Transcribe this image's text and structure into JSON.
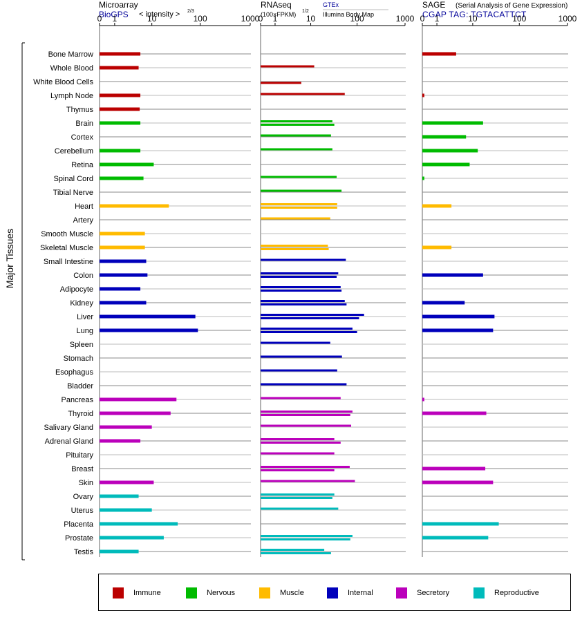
{
  "panels": [
    {
      "title": "Microarray",
      "subtitle": "BioGPS",
      "scale_note": "< intensity >",
      "scale_exp": "2/3",
      "extra1": "",
      "extra2": "",
      "ticks": [
        "0",
        "1",
        "10",
        "100",
        "1000"
      ]
    },
    {
      "title": "RNAseq",
      "subtitle": "(100×FPKM)",
      "scale_note": "",
      "scale_exp": "1/2",
      "extra1": "GTEx",
      "extra2": "Illumina Body Map",
      "ticks": [
        "0",
        "1",
        "10",
        "100",
        "1000"
      ]
    },
    {
      "title": "SAGE",
      "subtitle": "CGAP TAG: TGTACATTCT",
      "scale_note": "(Serial Analysis of Gene Expression)",
      "scale_exp": "",
      "extra1": "",
      "extra2": "",
      "ticks": [
        "0",
        "1",
        "10",
        "100",
        "1000"
      ]
    }
  ],
  "group_label": "Major Tissues",
  "colors": {
    "Immune": "#bb0000",
    "Nervous": "#00bb00",
    "Muscle": "#ffbb00",
    "Internal": "#0000bb",
    "Secretory": "#bb00bb",
    "Reproductive": "#00bbbb"
  },
  "legend": [
    {
      "label": "Immune",
      "color": "#bb0000"
    },
    {
      "label": "Nervous",
      "color": "#00bb00"
    },
    {
      "label": "Muscle",
      "color": "#ffbb00"
    },
    {
      "label": "Internal",
      "color": "#0000bb"
    },
    {
      "label": "Secretory",
      "color": "#bb00bb"
    },
    {
      "label": "Reproductive",
      "color": "#00bbbb"
    }
  ],
  "chart_data": {
    "type": "bar",
    "orientation": "horizontal",
    "x_scale": "log(1+x)",
    "xlim": [
      0,
      1000
    ],
    "series": [
      "Microarray",
      "RNAseq GTEx",
      "RNAseq Illumina Body Map",
      "SAGE"
    ],
    "tissues": [
      {
        "name": "Bone Marrow",
        "group": "Immune",
        "micro": 5.5,
        "gtex": null,
        "ibm": null,
        "sage": 4
      },
      {
        "name": "Whole Blood",
        "group": "Immune",
        "micro": 5,
        "gtex": 12,
        "ibm": null,
        "sage": null
      },
      {
        "name": "White Blood Cells",
        "group": "Immune",
        "micro": null,
        "gtex": null,
        "ibm": 6,
        "sage": null
      },
      {
        "name": "Lymph Node",
        "group": "Immune",
        "micro": 5.5,
        "gtex": 55,
        "ibm": null,
        "sage": 0.1
      },
      {
        "name": "Thymus",
        "group": "Immune",
        "micro": 5.3,
        "gtex": null,
        "ibm": null,
        "sage": null
      },
      {
        "name": "Brain",
        "group": "Nervous",
        "micro": 5.5,
        "gtex": 30,
        "ibm": 33,
        "sage": 17
      },
      {
        "name": "Cortex",
        "group": "Nervous",
        "micro": null,
        "gtex": 28,
        "ibm": null,
        "sage": 7
      },
      {
        "name": "Cerebellum",
        "group": "Nervous",
        "micro": 5.5,
        "gtex": 30,
        "ibm": null,
        "sage": 13
      },
      {
        "name": "Retina",
        "group": "Nervous",
        "micro": 11,
        "gtex": null,
        "ibm": null,
        "sage": 8.5
      },
      {
        "name": "Spinal Cord",
        "group": "Nervous",
        "micro": 6.5,
        "gtex": 37,
        "ibm": null,
        "sage": 0.1
      },
      {
        "name": "Tibial Nerve",
        "group": "Nervous",
        "micro": null,
        "gtex": 47,
        "ibm": null,
        "sage": null
      },
      {
        "name": "Heart",
        "group": "Muscle",
        "micro": 23,
        "gtex": 38,
        "ibm": 38,
        "sage": 3
      },
      {
        "name": "Artery",
        "group": "Muscle",
        "micro": null,
        "gtex": 27,
        "ibm": null,
        "sage": null
      },
      {
        "name": "Smooth Muscle",
        "group": "Muscle",
        "micro": 7,
        "gtex": null,
        "ibm": null,
        "sage": null
      },
      {
        "name": "Skeletal Muscle",
        "group": "Muscle",
        "micro": 7,
        "gtex": 24,
        "ibm": 25,
        "sage": 3
      },
      {
        "name": "Small Intestine",
        "group": "Internal",
        "micro": 7.5,
        "gtex": 58,
        "ibm": null,
        "sage": null
      },
      {
        "name": "Colon",
        "group": "Internal",
        "micro": 8,
        "gtex": 40,
        "ibm": 37,
        "sage": 17
      },
      {
        "name": "Adipocyte",
        "group": "Internal",
        "micro": 5.5,
        "gtex": 45,
        "ibm": 47,
        "sage": null
      },
      {
        "name": "Kidney",
        "group": "Internal",
        "micro": 7.5,
        "gtex": 55,
        "ibm": 60,
        "sage": 6.5
      },
      {
        "name": "Liver",
        "group": "Internal",
        "micro": 80,
        "gtex": 140,
        "ibm": 110,
        "sage": 30
      },
      {
        "name": "Lung",
        "group": "Internal",
        "micro": 90,
        "gtex": 80,
        "ibm": 100,
        "sage": 28
      },
      {
        "name": "Spleen",
        "group": "Internal",
        "micro": null,
        "gtex": 27,
        "ibm": null,
        "sage": null
      },
      {
        "name": "Stomach",
        "group": "Internal",
        "micro": null,
        "gtex": 48,
        "ibm": null,
        "sage": null
      },
      {
        "name": "Esophagus",
        "group": "Internal",
        "micro": null,
        "gtex": 38,
        "ibm": null,
        "sage": null
      },
      {
        "name": "Bladder",
        "group": "Internal",
        "micro": null,
        "gtex": 60,
        "ibm": null,
        "sage": null
      },
      {
        "name": "Pancreas",
        "group": "Secretory",
        "micro": 33,
        "gtex": 45,
        "ibm": null,
        "sage": 0.1
      },
      {
        "name": "Thyroid",
        "group": "Secretory",
        "micro": 25,
        "gtex": 80,
        "ibm": 72,
        "sage": 20
      },
      {
        "name": "Salivary Gland",
        "group": "Secretory",
        "micro": 10,
        "gtex": 75,
        "ibm": null,
        "sage": null
      },
      {
        "name": "Adrenal Gland",
        "group": "Secretory",
        "micro": 5.5,
        "gtex": 33,
        "ibm": 45,
        "sage": null
      },
      {
        "name": "Pituitary",
        "group": "Secretory",
        "micro": null,
        "gtex": 33,
        "ibm": null,
        "sage": null
      },
      {
        "name": "Breast",
        "group": "Secretory",
        "micro": null,
        "gtex": 70,
        "ibm": 33,
        "sage": 19
      },
      {
        "name": "Skin",
        "group": "Secretory",
        "micro": 11,
        "gtex": 90,
        "ibm": null,
        "sage": 28
      },
      {
        "name": "Ovary",
        "group": "Reproductive",
        "micro": 5,
        "gtex": 33,
        "ibm": 30,
        "sage": null
      },
      {
        "name": "Uterus",
        "group": "Reproductive",
        "micro": 10,
        "gtex": 40,
        "ibm": null,
        "sage": null
      },
      {
        "name": "Placenta",
        "group": "Reproductive",
        "micro": 35,
        "gtex": null,
        "ibm": null,
        "sage": 37
      },
      {
        "name": "Prostate",
        "group": "Reproductive",
        "micro": 18,
        "gtex": 80,
        "ibm": 72,
        "sage": 22
      },
      {
        "name": "Testis",
        "group": "Reproductive",
        "micro": 5,
        "gtex": 20,
        "ibm": 28,
        "sage": null
      }
    ]
  }
}
